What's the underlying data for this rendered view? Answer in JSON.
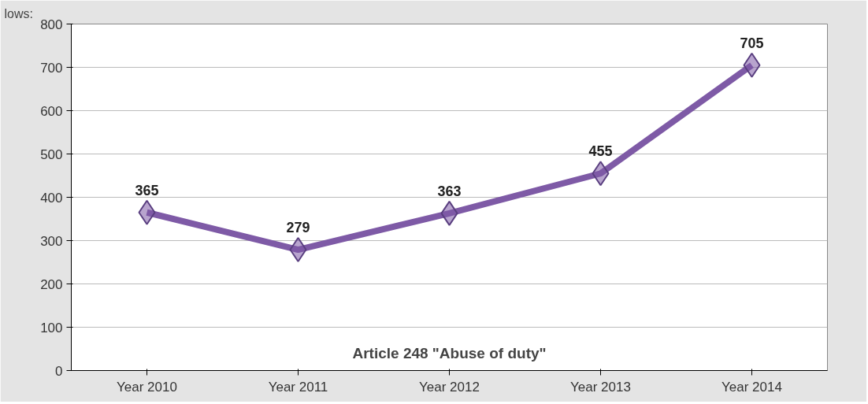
{
  "chart_data": {
    "type": "line",
    "categories": [
      "Year 2010",
      "Year 2011",
      "Year 2012",
      "Year 2013",
      "Year 2014"
    ],
    "series": [
      {
        "color": "#7e5aa6",
        "values": [
          365,
          279,
          363,
          455,
          705
        ]
      }
    ],
    "ylim": [
      0,
      800
    ],
    "yticks": [
      0,
      100,
      200,
      300,
      400,
      500,
      600,
      700,
      800
    ],
    "grid": "y",
    "marker": "diamond",
    "line_style": "solid",
    "data_labels": true,
    "annotations": [
      "Article 248 \"Abuse of duty\"",
      "lows:"
    ]
  }
}
